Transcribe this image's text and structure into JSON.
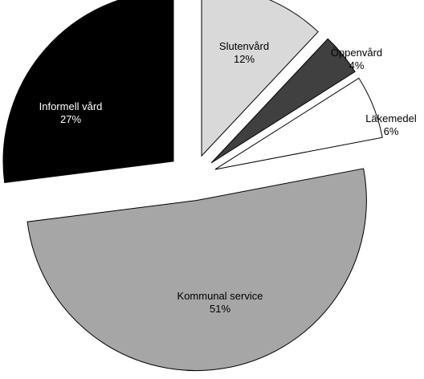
{
  "chart_data": {
    "type": "pie",
    "exploded": true,
    "slices": [
      {
        "label": "Slutenvård",
        "value": 12,
        "value_label": "12%",
        "color": "#d9d9d9",
        "text_color": "#000000"
      },
      {
        "label": "Öppenvård",
        "value": 4,
        "value_label": "4%",
        "color": "#404040",
        "text_color": "#000000"
      },
      {
        "label": "Läkemedel",
        "value": 6,
        "value_label": "6%",
        "color": "#ffffff",
        "text_color": "#000000"
      },
      {
        "label": "Kommunal service",
        "value": 51,
        "value_label": "51%",
        "color": "#a6a6a6",
        "text_color": "#000000"
      },
      {
        "label": "Informell vård",
        "value": 27,
        "value_label": "27%",
        "color": "#000000",
        "text_color": "#ffffff"
      }
    ]
  }
}
